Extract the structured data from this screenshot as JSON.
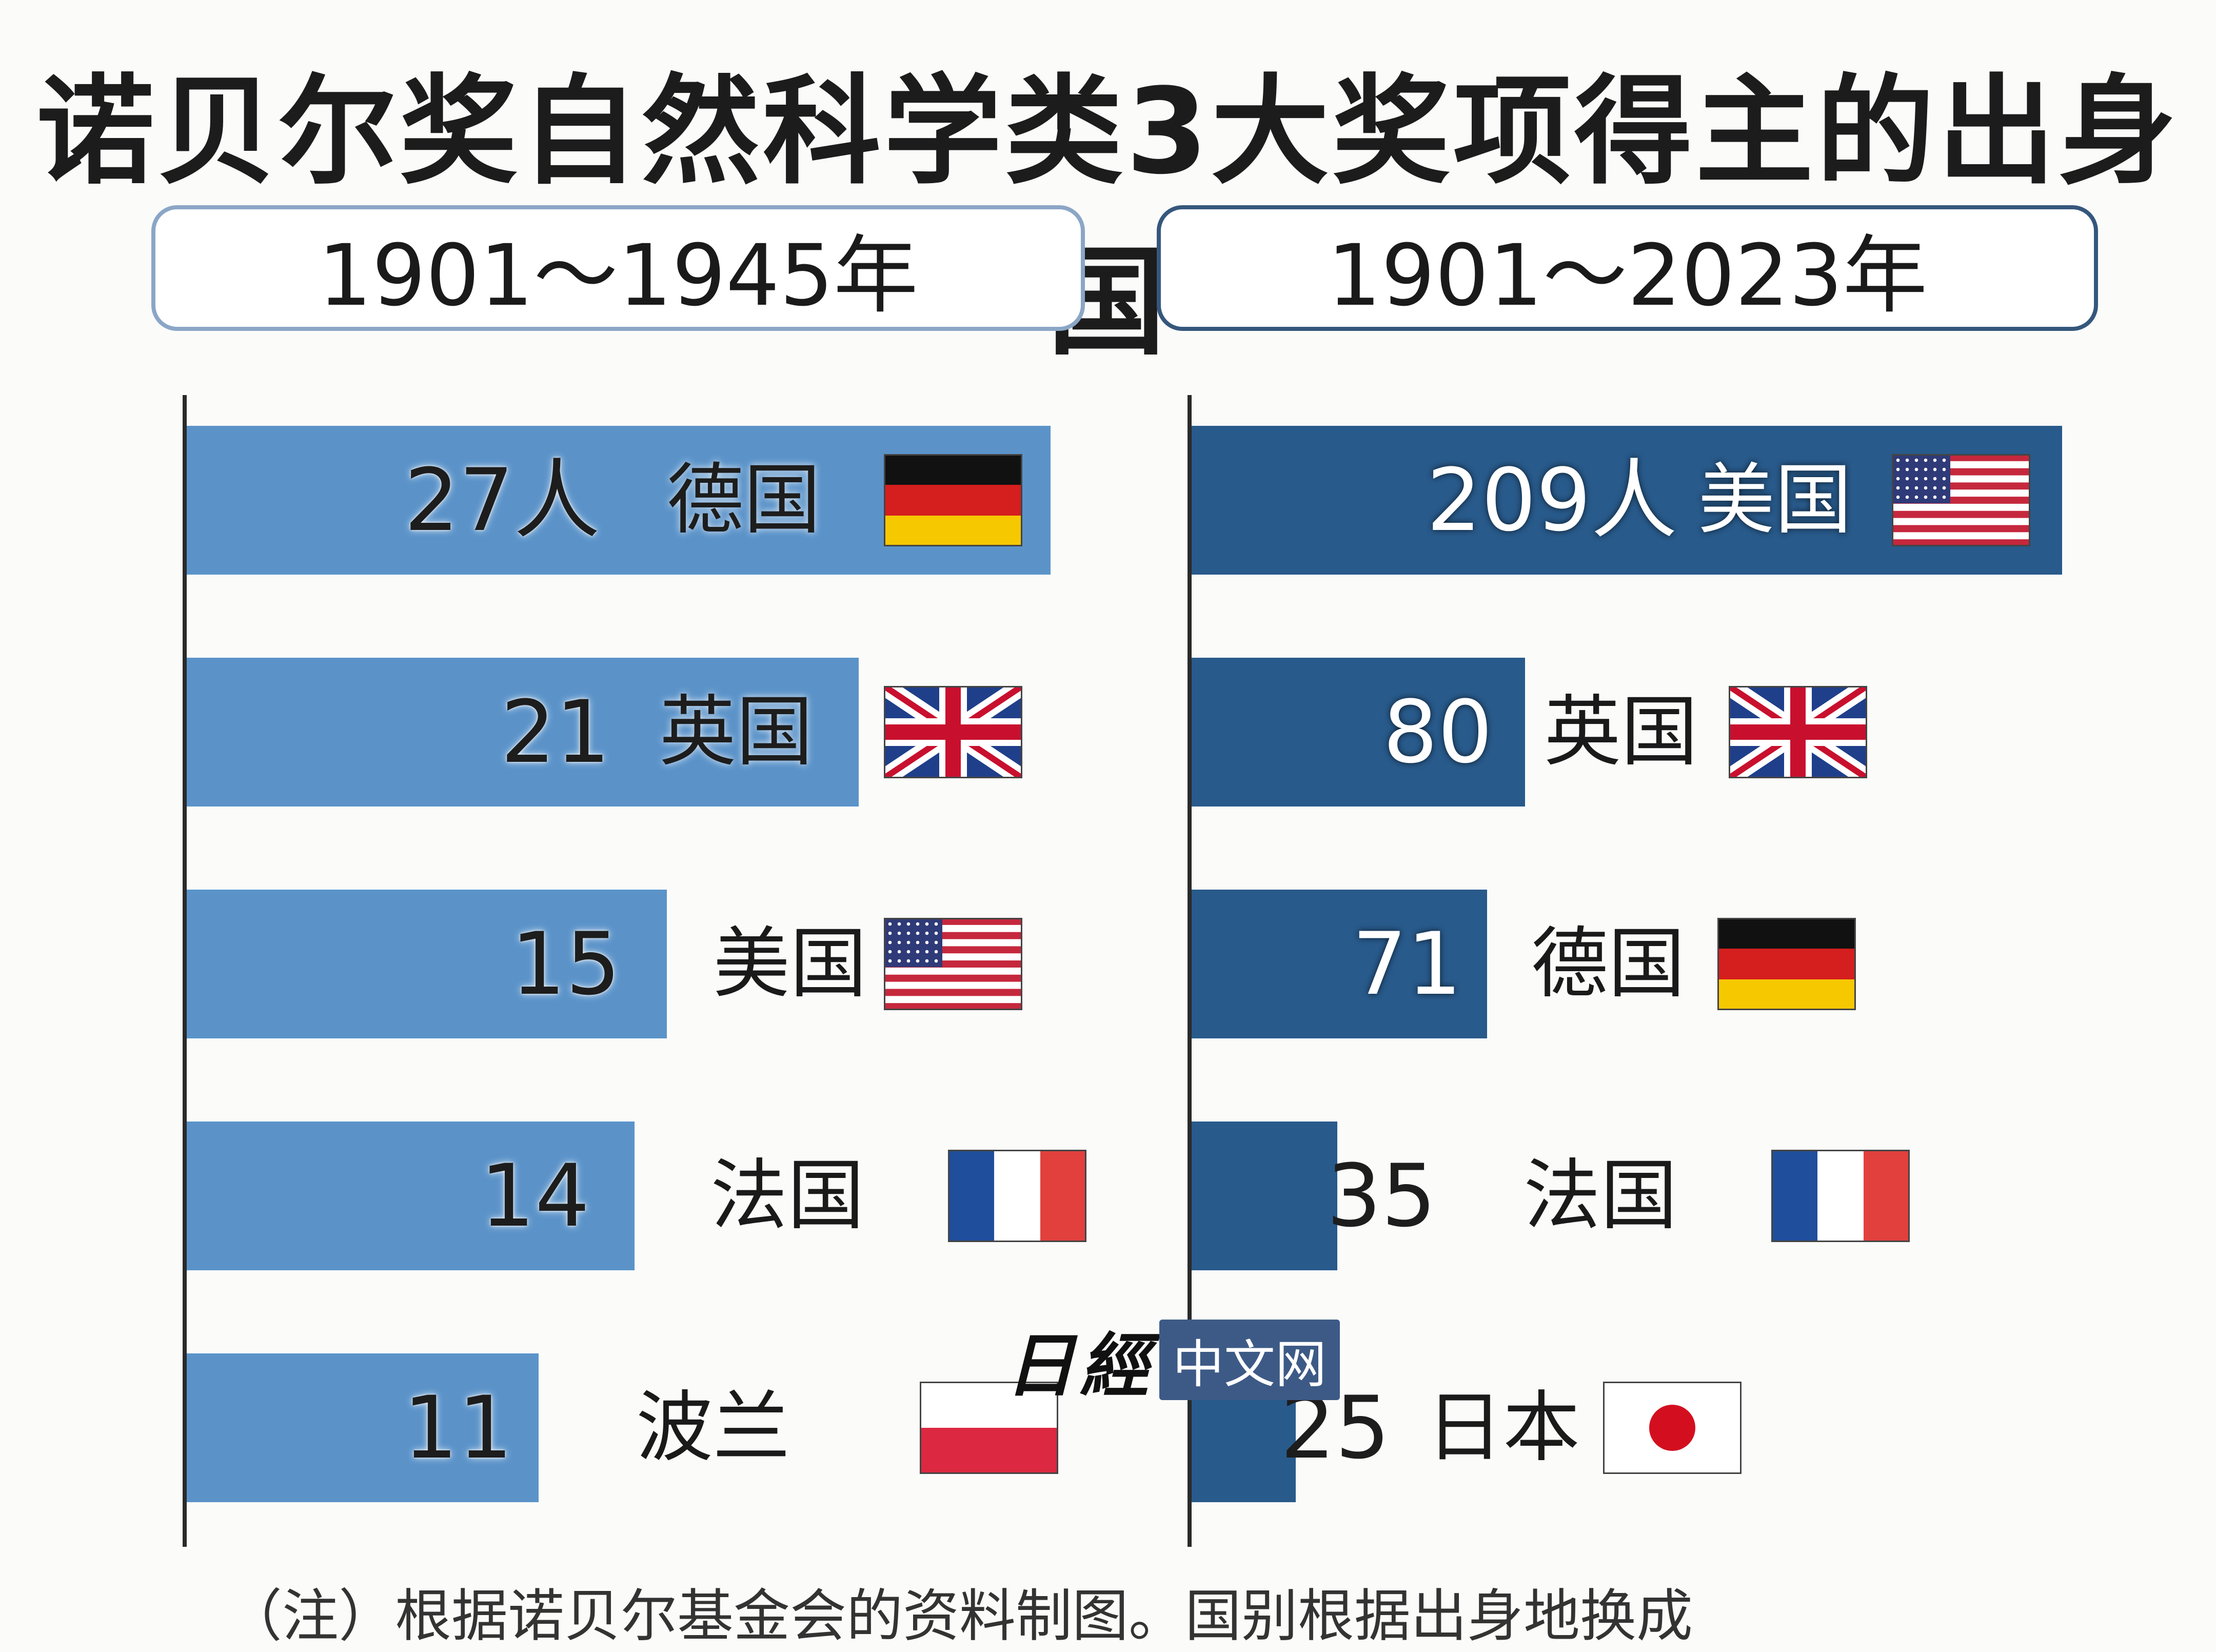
{
  "title": "诺贝尔奖自然科学类3大奖项得主的出身国",
  "watermark": {
    "logo": "日經",
    "text": "中文网"
  },
  "footnote": "（注）根据诺贝尔基金会的资料制图。国别根据出身地换成",
  "colors": {
    "left_bar": "#5b93c9",
    "right_bar": "#285a8b",
    "axis": "#2a2a2a"
  },
  "chart_data": [
    {
      "type": "bar",
      "orientation": "horizontal",
      "period": "1901～1945年",
      "categories": [
        "德国",
        "英国",
        "美国",
        "法国",
        "波兰"
      ],
      "values": [
        27,
        21,
        15,
        14,
        11
      ],
      "value_labels": [
        "27人",
        "21",
        "15",
        "14",
        "11"
      ],
      "flags": [
        "flag-germany-icon",
        "flag-uk-icon",
        "flag-usa-icon",
        "flag-france-icon",
        "flag-poland-icon"
      ],
      "xlim": [
        0,
        27
      ]
    },
    {
      "type": "bar",
      "orientation": "horizontal",
      "period": "1901～2023年",
      "categories": [
        "美国",
        "英国",
        "德国",
        "法国",
        "日本"
      ],
      "values": [
        209,
        80,
        71,
        35,
        25
      ],
      "value_labels": [
        "209人",
        "80",
        "71",
        "35",
        "25"
      ],
      "flags": [
        "flag-usa-icon",
        "flag-uk-icon",
        "flag-germany-icon",
        "flag-france-icon",
        "flag-japan-icon"
      ],
      "xlim": [
        0,
        209
      ]
    }
  ]
}
